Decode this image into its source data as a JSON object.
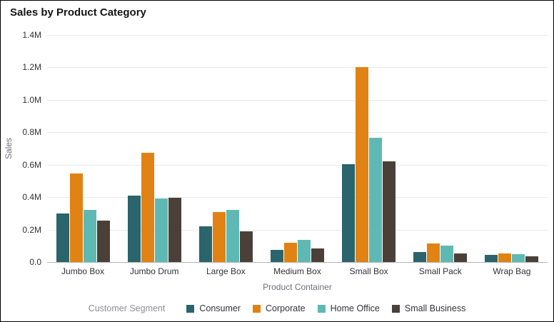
{
  "chart_data": {
    "type": "bar",
    "title": "Sales by Product Category",
    "xlabel": "Product Container",
    "ylabel": "Sales",
    "categories": [
      "Jumbo Box",
      "Jumbo Drum",
      "Large Box",
      "Medium Box",
      "Small Box",
      "Small Pack",
      "Wrap Bag"
    ],
    "series": [
      {
        "name": "Consumer",
        "color": "#2a646c",
        "values": [
          0.3,
          0.41,
          0.22,
          0.075,
          0.605,
          0.06,
          0.045
        ]
      },
      {
        "name": "Corporate",
        "color": "#e08214",
        "values": [
          0.545,
          0.675,
          0.31,
          0.12,
          1.2,
          0.115,
          0.055
        ]
      },
      {
        "name": "Home Office",
        "color": "#5eb9b4",
        "values": [
          0.32,
          0.39,
          0.32,
          0.135,
          0.765,
          0.1,
          0.048
        ]
      },
      {
        "name": "Small Business",
        "color": "#4b4038",
        "values": [
          0.255,
          0.395,
          0.19,
          0.085,
          0.62,
          0.055,
          0.035
        ]
      }
    ],
    "y_ticks": [
      {
        "label": "1.4M",
        "value": 1.4
      },
      {
        "label": "1.2M",
        "value": 1.2
      },
      {
        "label": "1.0M",
        "value": 1.0
      },
      {
        "label": "0.8M",
        "value": 0.8
      },
      {
        "label": "0.6M",
        "value": 0.6
      },
      {
        "label": "0.4M",
        "value": 0.4
      },
      {
        "label": "0.2M",
        "value": 0.2
      },
      {
        "label": "0.0",
        "value": 0.0
      }
    ],
    "ylim": [
      0,
      1.4
    ],
    "grid": true,
    "legend_title": "Customer Segment",
    "legend_position": "bottom"
  }
}
